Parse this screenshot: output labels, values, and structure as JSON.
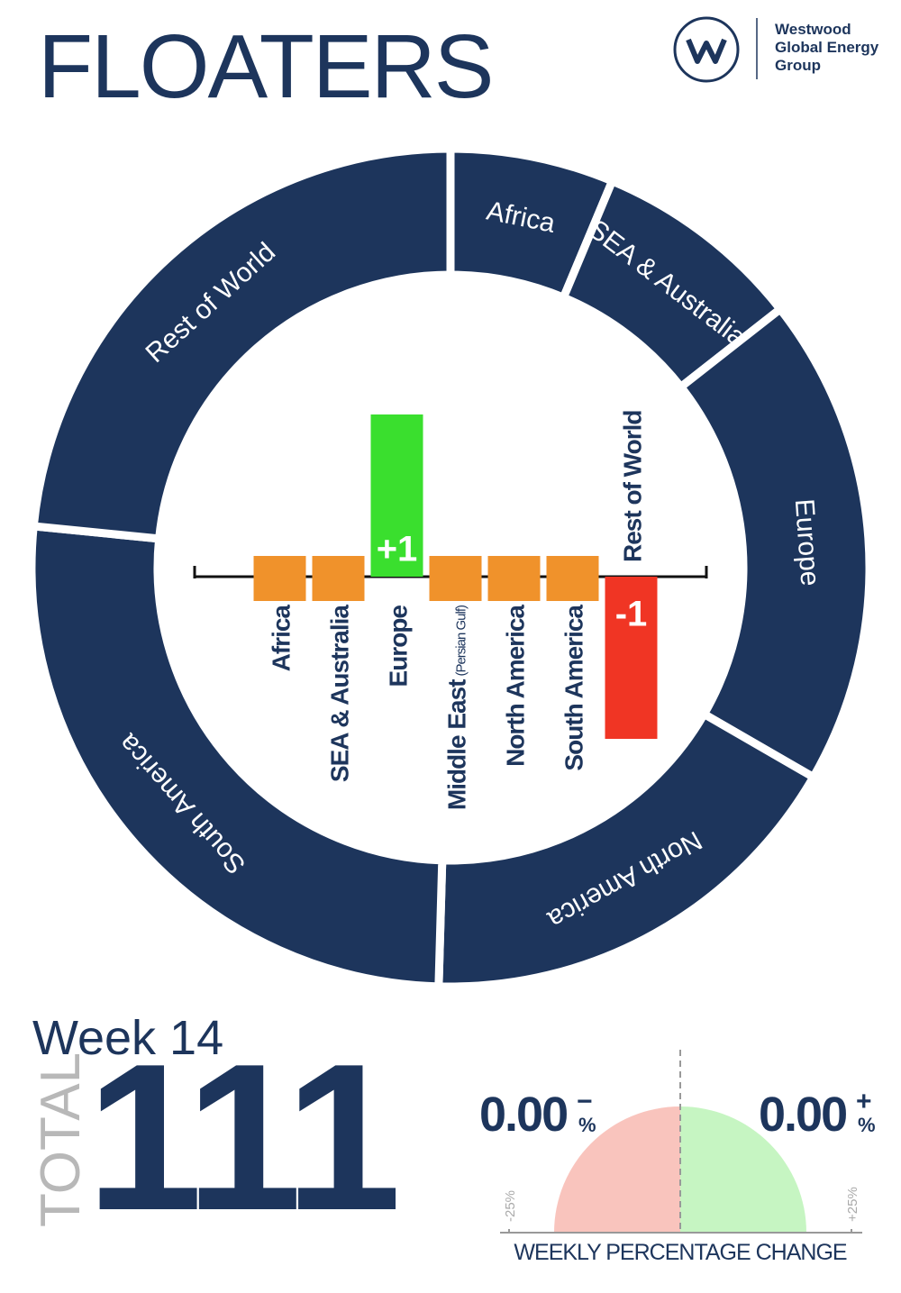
{
  "header": {
    "title": "FLOATERS",
    "logo_text": [
      "Westwood",
      "Global Energy",
      "Group"
    ]
  },
  "chart_data": [
    {
      "type": "donut",
      "categories": [
        "Africa",
        "SEA & Australia",
        "Europe",
        "North America",
        "South America",
        "Rest of World"
      ],
      "values": [
        7,
        9,
        21,
        19,
        29,
        26
      ],
      "color": "#1d355c"
    },
    {
      "type": "bar",
      "categories": [
        "Africa",
        "SEA & Australia",
        "Europe",
        "Middle East",
        "North America",
        "South America",
        "Rest of World"
      ],
      "category_notes": [
        null,
        null,
        null,
        "(Persian Gulf)",
        null,
        null,
        null
      ],
      "values": [
        0,
        0,
        1,
        0,
        0,
        0,
        -1
      ],
      "value_labels": [
        null,
        null,
        "+1",
        null,
        null,
        null,
        "-1"
      ],
      "colors": [
        "#f0922b",
        "#f0922b",
        "#3adf2e",
        "#f0922b",
        "#f0922b",
        "#f0922b",
        "#f03524"
      ],
      "ylim": [
        -1.1,
        1.1
      ]
    },
    {
      "type": "gauge",
      "xlabel": "WEEKLY PERCENTAGE CHANGE",
      "xlim": [
        -25,
        25
      ],
      "xticks": [
        {
          "value": -25,
          "label": "-25%"
        },
        {
          "value": 25,
          "label": "+25%"
        }
      ],
      "values": [
        0,
        0
      ],
      "value_labels": [
        "0.00",
        "0.00"
      ],
      "signs": [
        "−",
        "+"
      ],
      "unit": "%",
      "colors": [
        "#f9c4bd",
        "#c6f5c2"
      ]
    }
  ],
  "week": "Week 14",
  "total": {
    "label": "TOTAL",
    "value": 111
  }
}
